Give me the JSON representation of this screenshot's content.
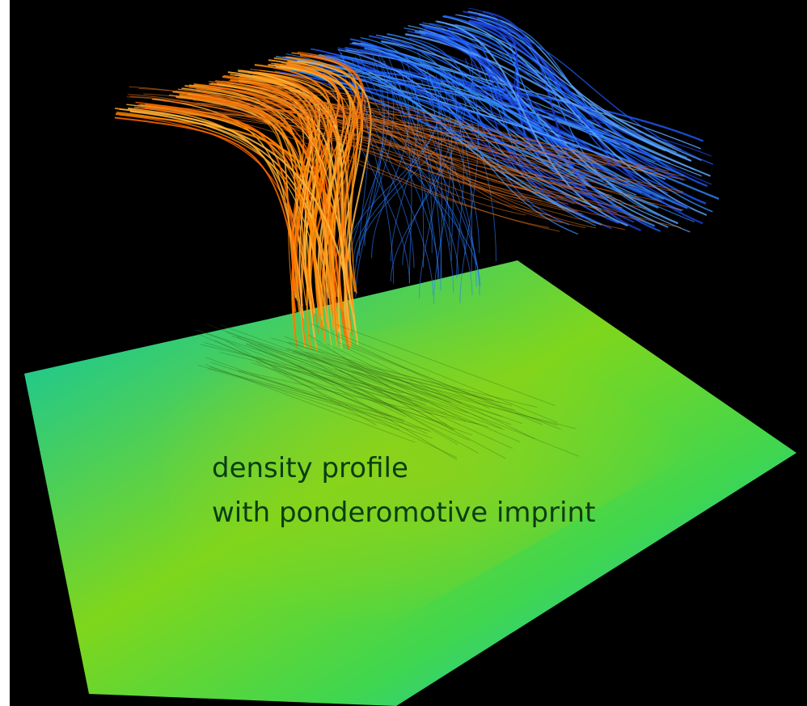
{
  "annotation": {
    "lines": [
      "density profile",
      "with ponderomotive imprint"
    ]
  }
}
